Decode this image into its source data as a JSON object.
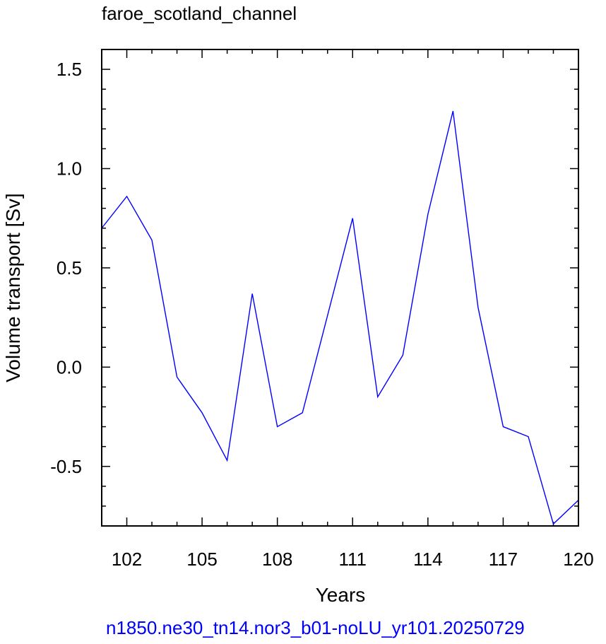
{
  "chart_data": {
    "type": "line",
    "title": "faroe_scotland_channel",
    "xlabel": "Years",
    "ylabel": "Volume transport [Sv]",
    "case_name": "n1850.ne30_tn14.nor3_b01-noLU_yr101.20250729",
    "case_color": "#0000ff",
    "line_color": "#0000ff",
    "xlim": [
      101,
      120
    ],
    "ylim": [
      -0.8,
      1.6
    ],
    "x_major_ticks": [
      102,
      105,
      108,
      111,
      114,
      117,
      120
    ],
    "x_tick_labels": [
      "102",
      "105",
      "108",
      "111",
      "114",
      "117",
      "120"
    ],
    "y_major_ticks": [
      1.5,
      1.0,
      0.5,
      0.0,
      -0.5
    ],
    "y_tick_labels": [
      "1.5",
      "1.0",
      "0.5",
      "0.0",
      "-0.5"
    ],
    "grid": false,
    "series": [
      {
        "x": [
          101,
          102,
          103,
          104,
          105,
          106,
          107,
          108,
          109,
          110,
          111,
          112,
          113,
          114,
          115,
          116,
          117,
          118,
          119,
          120
        ],
        "values": [
          0.7,
          0.86,
          0.64,
          -0.05,
          -0.23,
          -0.47,
          0.37,
          -0.3,
          -0.23,
          0.26,
          0.75,
          -0.15,
          0.06,
          0.77,
          1.29,
          0.3,
          -0.3,
          -0.35,
          -0.79,
          -0.67
        ]
      }
    ]
  }
}
